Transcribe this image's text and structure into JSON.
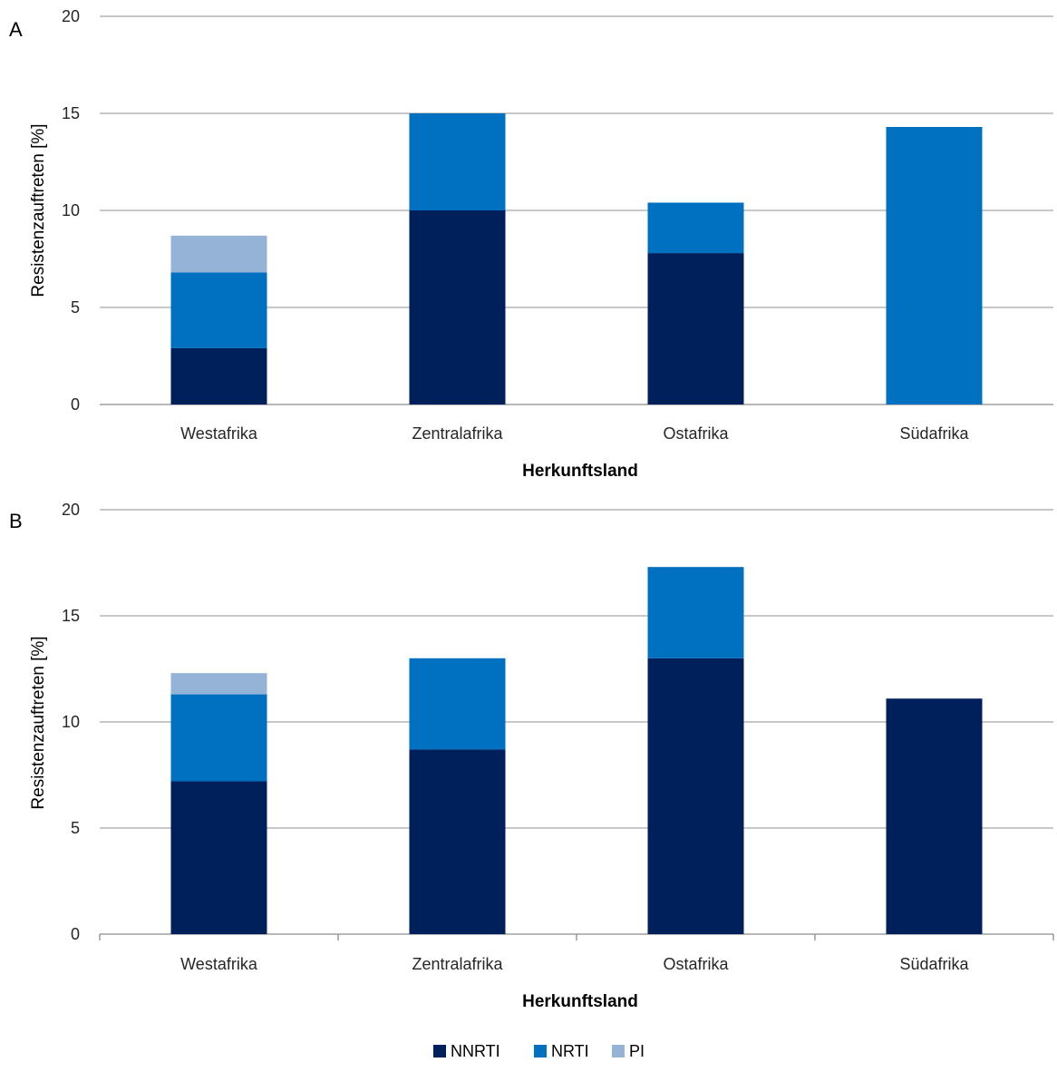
{
  "legend": [
    {
      "name": "NNRTI",
      "color": "#00205B"
    },
    {
      "name": "NRTI",
      "color": "#0070C0"
    },
    {
      "name": "PI",
      "color": "#95B3D7"
    }
  ],
  "chart_data": [
    {
      "type": "bar",
      "stacked": true,
      "panel_label": "A",
      "categories": [
        "Westafrika",
        "Zentralafrika",
        "Ostafrika",
        "Südafrika"
      ],
      "series": [
        {
          "name": "NNRTI",
          "values": [
            2.9,
            10.0,
            7.8,
            0
          ]
        },
        {
          "name": "NRTI",
          "values": [
            3.9,
            5.0,
            2.6,
            14.3
          ]
        },
        {
          "name": "PI",
          "values": [
            1.9,
            0,
            0,
            0
          ]
        }
      ],
      "xlabel": "Herkunftsland",
      "ylabel": "Resistenzauftreten [%]",
      "ylim": [
        0,
        20
      ],
      "yticks": [
        "0",
        "5",
        "10",
        "15",
        "20"
      ],
      "grid": true
    },
    {
      "type": "bar",
      "stacked": true,
      "panel_label": "B",
      "categories": [
        "Westafrika",
        "Zentralafrika",
        "Ostafrika",
        "Südafrika"
      ],
      "series": [
        {
          "name": "NNRTI",
          "values": [
            7.2,
            8.7,
            13.0,
            11.1
          ]
        },
        {
          "name": "NRTI",
          "values": [
            4.1,
            4.3,
            4.3,
            0
          ]
        },
        {
          "name": "PI",
          "values": [
            1.0,
            0,
            0,
            0
          ]
        }
      ],
      "xlabel": "Herkunftsland",
      "ylabel": "Resistenzauftreten [%]",
      "ylim": [
        0,
        20
      ],
      "yticks": [
        "0",
        "5",
        "10",
        "15",
        "20"
      ],
      "grid": true
    }
  ]
}
